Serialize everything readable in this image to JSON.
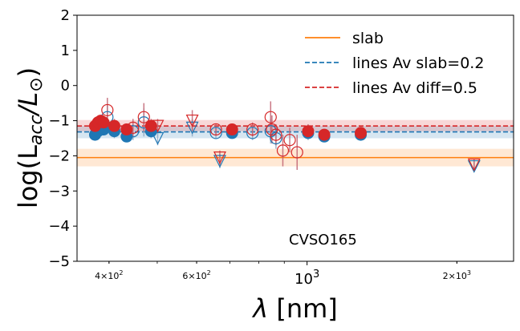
{
  "chart_data": {
    "type": "scatter",
    "title": "",
    "xlabel_main": "λ",
    "xlabel_unit": "[nm]",
    "ylabel_prefix": "log(L",
    "ylabel_sub": "acc",
    "ylabel_mid": "/L",
    "ylabel_sun": "⊙",
    "ylabel_suffix": ")",
    "x_scale": "log",
    "xlim": [
      345,
      2600
    ],
    "ylim": [
      -5,
      2
    ],
    "y_ticks": [
      2,
      1,
      0,
      -1,
      -2,
      -3,
      -4,
      -5
    ],
    "y_tick_labels": [
      "2",
      "1",
      "0",
      "−1",
      "−2",
      "−3",
      "−4",
      "−5"
    ],
    "x_ticks": [
      {
        "value": 400,
        "base": "4",
        "exp": "2",
        "size": "small"
      },
      {
        "value": 600,
        "base": "6",
        "exp": "2",
        "size": "small"
      },
      {
        "value": 1000,
        "base": "",
        "exp": "3",
        "size": "large"
      },
      {
        "value": 2000,
        "base": "2",
        "exp": "3",
        "size": "small"
      }
    ],
    "annotation": "CVSO165",
    "legend": {
      "placement": "upper-right",
      "entries": [
        {
          "label": "slab",
          "color": "#ff7f0e",
          "style": "solid"
        },
        {
          "label": "lines Av slab=0.2",
          "color": "#1f77b4",
          "style": "dashed"
        },
        {
          "label": "lines Av diff=0.5",
          "color": "#d62728",
          "style": "dashed"
        }
      ]
    },
    "reference_lines": [
      {
        "name": "slab",
        "y": -2.05,
        "band": [
          -2.3,
          -1.8
        ],
        "color": "#ff7f0e",
        "style": "solid"
      },
      {
        "name": "lines Av slab=0.2",
        "y": -1.32,
        "band": [
          -1.5,
          -1.15
        ],
        "color": "#1f77b4",
        "style": "dashed"
      },
      {
        "name": "lines Av diff=0.5",
        "y": -1.15,
        "band": [
          -1.3,
          -0.98
        ],
        "color": "#d62728",
        "style": "dashed"
      }
    ],
    "series": [
      {
        "name": "Av slab=0.2",
        "color": "#1f77b4",
        "points": [
          {
            "x": 375,
            "y": -1.4,
            "err": 0.12,
            "marker": "filled"
          },
          {
            "x": 380,
            "y": -1.3,
            "err": 0.12,
            "marker": "filled"
          },
          {
            "x": 385,
            "y": -1.2,
            "err": 0.15,
            "marker": "filled"
          },
          {
            "x": 390,
            "y": -1.25,
            "err": 0.15,
            "marker": "filled"
          },
          {
            "x": 397,
            "y": -0.9,
            "err": 0.35,
            "marker": "open"
          },
          {
            "x": 410,
            "y": -1.3,
            "err": 0.2,
            "marker": "filled"
          },
          {
            "x": 434,
            "y": -1.45,
            "err": 0.15,
            "marker": "filled"
          },
          {
            "x": 447,
            "y": -1.3,
            "err": 0.25,
            "marker": "open"
          },
          {
            "x": 470,
            "y": -1.05,
            "err": 0.4,
            "marker": "open"
          },
          {
            "x": 486,
            "y": -1.3,
            "err": 0.2,
            "marker": "filled"
          },
          {
            "x": 501,
            "y": -1.5,
            "err": 0.2,
            "marker": "triangle"
          },
          {
            "x": 588,
            "y": -1.2,
            "err": 0.25,
            "marker": "triangle"
          },
          {
            "x": 656,
            "y": -1.35,
            "err": 0.15,
            "marker": "open"
          },
          {
            "x": 668,
            "y": -2.15,
            "err": 0.2,
            "marker": "triangle"
          },
          {
            "x": 707,
            "y": -1.35,
            "err": 0.15,
            "marker": "filled"
          },
          {
            "x": 777,
            "y": -1.35,
            "err": 0.2,
            "marker": "open"
          },
          {
            "x": 845,
            "y": -1.3,
            "err": 0.35,
            "marker": "open"
          },
          {
            "x": 866,
            "y": -1.5,
            "err": 0.3,
            "marker": "open"
          },
          {
            "x": 1005,
            "y": -1.35,
            "err": 0.2,
            "marker": "filled"
          },
          {
            "x": 1083,
            "y": -1.45,
            "err": 0.15,
            "marker": "filled"
          },
          {
            "x": 1282,
            "y": -1.4,
            "err": 0.15,
            "marker": "filled"
          },
          {
            "x": 2166,
            "y": -2.3,
            "err": 0.15,
            "marker": "triangle"
          }
        ]
      },
      {
        "name": "Av diff=0.5",
        "color": "#d62728",
        "points": [
          {
            "x": 375,
            "y": -1.15,
            "err": 0.12,
            "marker": "filled"
          },
          {
            "x": 380,
            "y": -1.05,
            "err": 0.12,
            "marker": "filled"
          },
          {
            "x": 385,
            "y": -1.0,
            "err": 0.15,
            "marker": "filled"
          },
          {
            "x": 390,
            "y": -1.05,
            "err": 0.15,
            "marker": "filled"
          },
          {
            "x": 397,
            "y": -0.7,
            "err": 0.35,
            "marker": "open"
          },
          {
            "x": 410,
            "y": -1.15,
            "err": 0.2,
            "marker": "filled"
          },
          {
            "x": 434,
            "y": -1.25,
            "err": 0.15,
            "marker": "filled"
          },
          {
            "x": 447,
            "y": -1.2,
            "err": 0.25,
            "marker": "open"
          },
          {
            "x": 470,
            "y": -0.9,
            "err": 0.4,
            "marker": "open"
          },
          {
            "x": 486,
            "y": -1.15,
            "err": 0.2,
            "marker": "filled"
          },
          {
            "x": 501,
            "y": -1.15,
            "err": 0.2,
            "marker": "triangle"
          },
          {
            "x": 588,
            "y": -1.0,
            "err": 0.3,
            "marker": "triangle"
          },
          {
            "x": 656,
            "y": -1.25,
            "err": 0.15,
            "marker": "open"
          },
          {
            "x": 668,
            "y": -2.05,
            "err": 0.2,
            "marker": "triangle"
          },
          {
            "x": 707,
            "y": -1.25,
            "err": 0.15,
            "marker": "filled"
          },
          {
            "x": 777,
            "y": -1.25,
            "err": 0.2,
            "marker": "open"
          },
          {
            "x": 845,
            "y": -0.9,
            "err": 0.45,
            "marker": "open"
          },
          {
            "x": 850,
            "y": -1.25,
            "err": 0.4,
            "marker": "open"
          },
          {
            "x": 866,
            "y": -1.4,
            "err": 0.3,
            "marker": "open"
          },
          {
            "x": 894,
            "y": -1.85,
            "err": 0.45,
            "marker": "open"
          },
          {
            "x": 923,
            "y": -1.55,
            "err": 0.35,
            "marker": "open"
          },
          {
            "x": 955,
            "y": -1.9,
            "err": 0.5,
            "marker": "open"
          },
          {
            "x": 1005,
            "y": -1.3,
            "err": 0.2,
            "marker": "filled"
          },
          {
            "x": 1083,
            "y": -1.4,
            "err": 0.15,
            "marker": "filled"
          },
          {
            "x": 1282,
            "y": -1.35,
            "err": 0.15,
            "marker": "filled"
          },
          {
            "x": 2166,
            "y": -2.25,
            "err": 0.15,
            "marker": "triangle"
          }
        ]
      }
    ]
  }
}
